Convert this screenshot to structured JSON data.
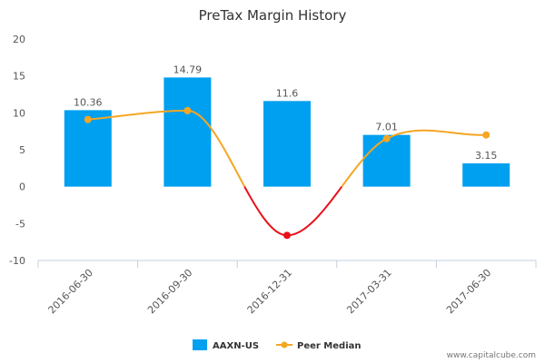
{
  "chart_data": {
    "type": "bar",
    "title": "PreTax Margin History",
    "categories": [
      "2016-06-30",
      "2016-09-30",
      "2016-12-31",
      "2017-03-31",
      "2017-06-30"
    ],
    "series": [
      {
        "name": "AAXN-US",
        "type": "bar",
        "values": [
          10.36,
          14.79,
          11.6,
          7.01,
          3.15
        ],
        "labels": [
          "10.36",
          "14.79",
          "11.6",
          "7.01",
          "3.15"
        ],
        "color": "#00a0f0"
      },
      {
        "name": "Peer Median",
        "type": "line",
        "values": [
          9.1,
          10.3,
          -6.6,
          6.5,
          7.0
        ],
        "color": "#f5a623",
        "negative_color": "#e8101a"
      }
    ],
    "yticks": [
      20,
      15,
      10,
      5,
      0,
      -5,
      -10
    ],
    "ylim": [
      -10,
      20
    ],
    "grid": false,
    "legend_position": "bottom"
  },
  "credit": "www.capitalcube.com"
}
